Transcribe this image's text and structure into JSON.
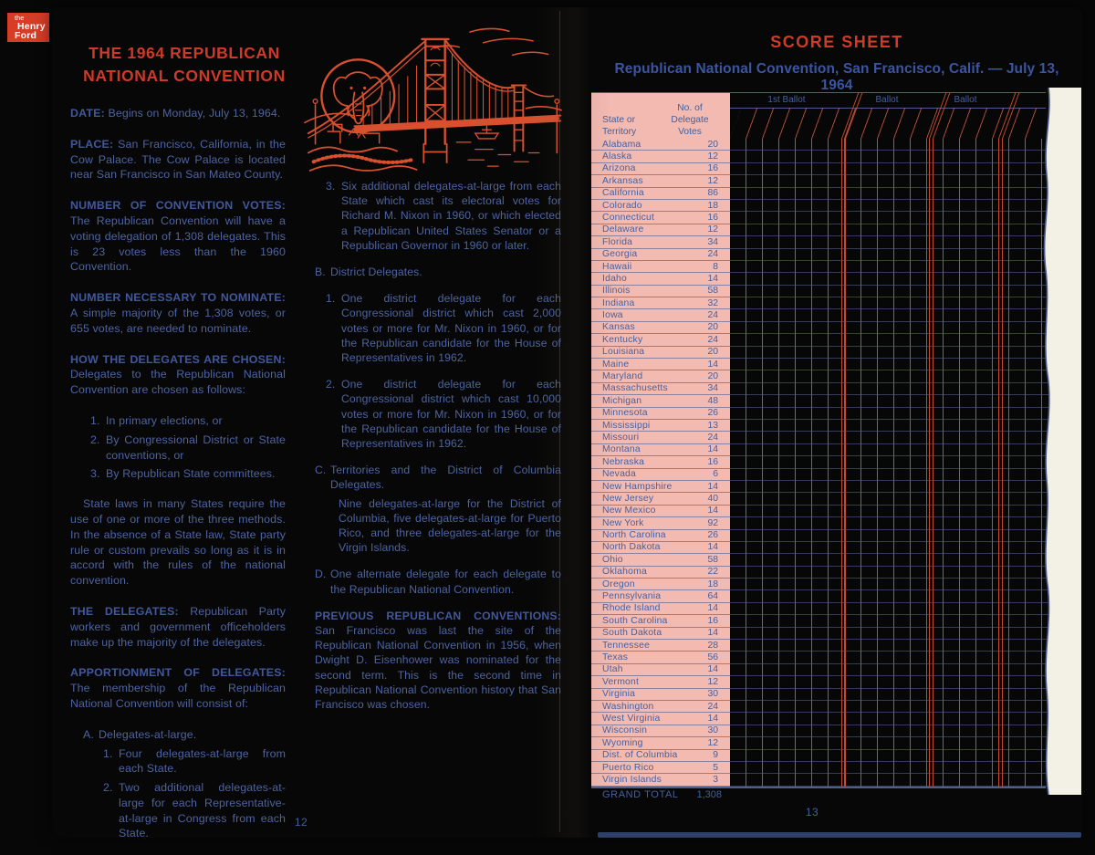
{
  "colors": {
    "accent_red": "#ce3a28",
    "illustration_red": "#d9502f",
    "text_blue": "#4d64a2",
    "table_pink": "#f2bab1",
    "grid_navy": "#4d5d8c",
    "logo_red": "#d63d27",
    "paper": "#f3f0e6"
  },
  "logo": {
    "the": "the",
    "henry": "Henry",
    "ford": "Ford"
  },
  "left_page": {
    "title_line1": "THE 1964 REPUBLICAN",
    "title_line2": "NATIONAL CONVENTION",
    "page_number": "12",
    "col1": [
      {
        "type": "para",
        "lead": "DATE:",
        "text": "  Begins on Monday, July 13, 1964."
      },
      {
        "type": "para",
        "lead": "PLACE:",
        "text": "  San Francisco, California, in the Cow Palace. The Cow Palace is located near San Francisco in San Mateo County."
      },
      {
        "type": "para",
        "lead": "NUMBER OF CONVENTION VOTES:",
        "text": "  The Republican Convention will have a voting delegation of 1,308 delegates. This is 23 votes less than the 1960 Convention."
      },
      {
        "type": "para",
        "lead": "NUMBER NECESSARY TO NOMINATE:",
        "text": "  A simple majority of the 1,308 votes, or 655 votes, are needed to nominate."
      },
      {
        "type": "para",
        "lead": "HOW THE DELEGATES ARE CHOSEN:",
        "text": "  Delegates to the Republican National Convention are chosen as follows:"
      },
      {
        "type": "item",
        "level": "num",
        "marker": "1.",
        "text": "In primary elections, or"
      },
      {
        "type": "item",
        "level": "num",
        "marker": "2.",
        "text": "By Congressional District or State conventions, or"
      },
      {
        "type": "item",
        "level": "num",
        "marker": "3.",
        "text": "By Republican State committees.",
        "gap": true
      },
      {
        "type": "para",
        "indent": true,
        "text": "State laws in many States require the use of one or more of the three methods. In the absence of a State law, State party rule or custom prevails so long as it is in accord with the rules of the national convention."
      },
      {
        "type": "para",
        "lead": "THE DELEGATES:",
        "text": "  Republican Party workers and government officeholders make up the majority of the delegates."
      },
      {
        "type": "para",
        "lead": "APPORTIONMENT OF DELEGATES:",
        "text": "  The membership of the Republican National Convention will consist of:"
      },
      {
        "type": "item",
        "level": "alpha",
        "marker": "A.",
        "text": "Delegates-at-large."
      },
      {
        "type": "item",
        "level": "subnum",
        "marker": "1.",
        "text": "Four delegates-at-large from each State."
      },
      {
        "type": "item",
        "level": "subnum",
        "marker": "2.",
        "text": "Two additional delegates-at-large for each Representative-at-large in Congress from each State."
      }
    ],
    "col2": [
      {
        "type": "item",
        "level": "subnum",
        "marker": "3.",
        "text": "Six additional delegates-at-large from each State which cast its electoral votes for Richard M. Nixon in 1960, or which elected a Republican United States Senator or a Republican Governor in 1960 or later.",
        "gap": true
      },
      {
        "type": "item",
        "level": "alpha",
        "marker": "B.",
        "text": "District Delegates.",
        "gap": true
      },
      {
        "type": "item",
        "level": "subnum",
        "marker": "1.",
        "text": "One district delegate for each Congressional district which cast 2,000 votes or more for Mr. Nixon in 1960, or for the Republican candidate for the House of Representatives in 1962.",
        "gap": true
      },
      {
        "type": "item",
        "level": "subnum",
        "marker": "2.",
        "text": "One district delegate for each Congressional district which cast 10,000 votes or more for Mr. Nixon in 1960, or for the Republican candidate for the House of Representatives in 1962.",
        "gap": true
      },
      {
        "type": "item",
        "level": "alpha",
        "marker": "C.",
        "text": "Territories and the District of Columbia Delegates."
      },
      {
        "type": "para",
        "cls": "subpara",
        "text": "Nine delegates-at-large for the District of Columbia, five delegates-at-large for Puerto Rico, and three delegates-at-large for the Virgin Islands.",
        "gap": true
      },
      {
        "type": "item",
        "level": "alpha",
        "marker": "D.",
        "text": "One alternate delegate for each delegate to the Republican National Convention.",
        "gap": true
      },
      {
        "type": "para",
        "lead": "PREVIOUS REPUBLICAN CONVENTIONS:",
        "text": "  San Francisco was last the site of the Republican National Convention in 1956, when Dwight D. Eisenhower was nominated for the second term. This is the second time in Republican National Convention history that San Francisco was chosen."
      }
    ]
  },
  "score_sheet": {
    "title": "SCORE SHEET",
    "subtitle": "Republican National Convention, San Francisco, Calif. — July 13, 1964",
    "page_number": "13",
    "col_header_state": [
      "State or",
      "Territory"
    ],
    "col_header_votes": [
      "No. of",
      "Delegate",
      "Votes"
    ],
    "ballot_headers": [
      "1st Ballot",
      "Ballot",
      "Ballot"
    ],
    "grand_total_label": "GRAND TOTAL",
    "grand_total_value": "1,308",
    "rows": [
      {
        "state": "Alabama",
        "votes": "20"
      },
      {
        "state": "Alaska",
        "votes": "12"
      },
      {
        "state": "Arizona",
        "votes": "16"
      },
      {
        "state": "Arkansas",
        "votes": "12"
      },
      {
        "state": "California",
        "votes": "86"
      },
      {
        "state": "Colorado",
        "votes": "18"
      },
      {
        "state": "Connecticut",
        "votes": "16"
      },
      {
        "state": "Delaware",
        "votes": "12"
      },
      {
        "state": "Florida",
        "votes": "34"
      },
      {
        "state": "Georgia",
        "votes": "24"
      },
      {
        "state": "Hawaii",
        "votes": "8"
      },
      {
        "state": "Idaho",
        "votes": "14"
      },
      {
        "state": "Illinois",
        "votes": "58"
      },
      {
        "state": "Indiana",
        "votes": "32"
      },
      {
        "state": "Iowa",
        "votes": "24"
      },
      {
        "state": "Kansas",
        "votes": "20"
      },
      {
        "state": "Kentucky",
        "votes": "24"
      },
      {
        "state": "Louisiana",
        "votes": "20"
      },
      {
        "state": "Maine",
        "votes": "14"
      },
      {
        "state": "Maryland",
        "votes": "20"
      },
      {
        "state": "Massachusetts",
        "votes": "34"
      },
      {
        "state": "Michigan",
        "votes": "48"
      },
      {
        "state": "Minnesota",
        "votes": "26"
      },
      {
        "state": "Mississippi",
        "votes": "13"
      },
      {
        "state": "Missouri",
        "votes": "24"
      },
      {
        "state": "Montana",
        "votes": "14"
      },
      {
        "state": "Nebraska",
        "votes": "16"
      },
      {
        "state": "Nevada",
        "votes": "6"
      },
      {
        "state": "New Hampshire",
        "votes": "14"
      },
      {
        "state": "New Jersey",
        "votes": "40"
      },
      {
        "state": "New Mexico",
        "votes": "14"
      },
      {
        "state": "New York",
        "votes": "92"
      },
      {
        "state": "North Carolina",
        "votes": "26"
      },
      {
        "state": "North Dakota",
        "votes": "14"
      },
      {
        "state": "Ohio",
        "votes": "58"
      },
      {
        "state": "Oklahoma",
        "votes": "22"
      },
      {
        "state": "Oregon",
        "votes": "18"
      },
      {
        "state": "Pennsylvania",
        "votes": "64"
      },
      {
        "state": "Rhode Island",
        "votes": "14"
      },
      {
        "state": "South Carolina",
        "votes": "16"
      },
      {
        "state": "South Dakota",
        "votes": "14"
      },
      {
        "state": "Tennessee",
        "votes": "28"
      },
      {
        "state": "Texas",
        "votes": "56"
      },
      {
        "state": "Utah",
        "votes": "14"
      },
      {
        "state": "Vermont",
        "votes": "12"
      },
      {
        "state": "Virginia",
        "votes": "30"
      },
      {
        "state": "Washington",
        "votes": "24"
      },
      {
        "state": "West Virginia",
        "votes": "14"
      },
      {
        "state": "Wisconsin",
        "votes": "30"
      },
      {
        "state": "Wyoming",
        "votes": "12"
      },
      {
        "state": "Dist. of Columbia",
        "votes": "9"
      },
      {
        "state": "Puerto Rico",
        "votes": "5"
      },
      {
        "state": "Virgin Islands",
        "votes": "3"
      }
    ]
  }
}
